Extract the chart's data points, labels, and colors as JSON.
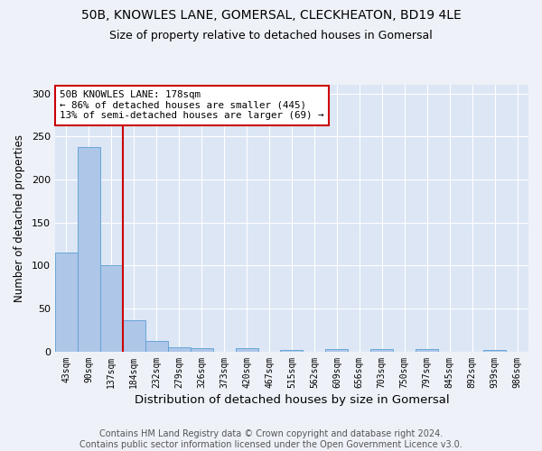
{
  "title1": "50B, KNOWLES LANE, GOMERSAL, CLECKHEATON, BD19 4LE",
  "title2": "Size of property relative to detached houses in Gomersal",
  "xlabel": "Distribution of detached houses by size in Gomersal",
  "ylabel": "Number of detached properties",
  "footnote": "Contains HM Land Registry data © Crown copyright and database right 2024.\nContains public sector information licensed under the Open Government Licence v3.0.",
  "bin_labels": [
    "43sqm",
    "90sqm",
    "137sqm",
    "184sqm",
    "232sqm",
    "279sqm",
    "326sqm",
    "373sqm",
    "420sqm",
    "467sqm",
    "515sqm",
    "562sqm",
    "609sqm",
    "656sqm",
    "703sqm",
    "750sqm",
    "797sqm",
    "845sqm",
    "892sqm",
    "939sqm",
    "986sqm"
  ],
  "bar_heights": [
    115,
    238,
    101,
    37,
    13,
    5,
    4,
    0,
    4,
    0,
    2,
    0,
    3,
    0,
    3,
    0,
    3,
    0,
    0,
    2,
    0
  ],
  "bar_color": "#aec6e8",
  "bar_edgecolor": "#5a9fd4",
  "vline_color": "#cc0000",
  "annotation_text": "50B KNOWLES LANE: 178sqm\n← 86% of detached houses are smaller (445)\n13% of semi-detached houses are larger (69) →",
  "annotation_box_edgecolor": "#cc0000",
  "ylim": [
    0,
    310
  ],
  "yticks": [
    0,
    50,
    100,
    150,
    200,
    250,
    300
  ],
  "background_color": "#eef2f8",
  "plot_bg_color": "#dce6f5",
  "grid_color": "#ffffff",
  "title1_fontsize": 10,
  "title2_fontsize": 9,
  "xlabel_fontsize": 9.5,
  "ylabel_fontsize": 8.5,
  "tick_fontsize": 7,
  "footnote_fontsize": 7
}
